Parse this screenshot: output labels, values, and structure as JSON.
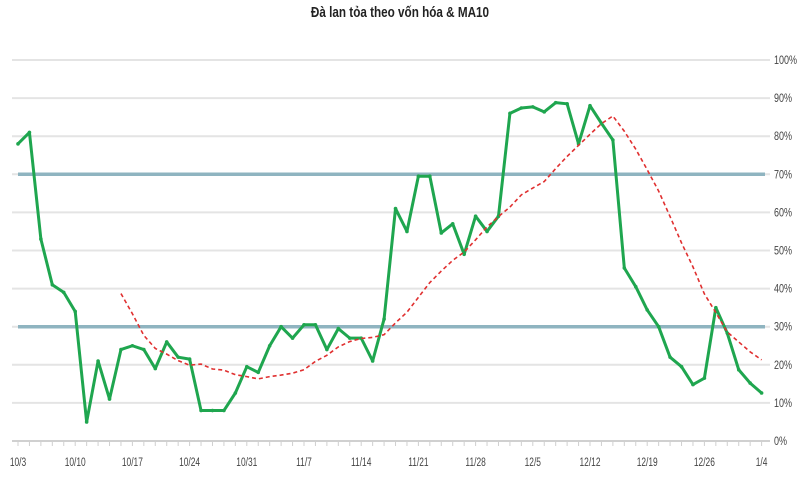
{
  "chart_data": {
    "type": "line",
    "title": "Đà lan tỏa theo vốn hóa & MA10",
    "xlabel": "",
    "ylabel": "",
    "ylim": [
      0,
      100
    ],
    "y_ticks": [
      "0%",
      "10%",
      "20%",
      "30%",
      "40%",
      "50%",
      "60%",
      "70%",
      "80%",
      "90%",
      "100%"
    ],
    "x_tick_labels": [
      "10/3",
      "10/10",
      "10/17",
      "10/24",
      "10/31",
      "11/7",
      "11/14",
      "11/21",
      "11/28",
      "12/5",
      "12/12",
      "12/19",
      "12/26",
      "1/4"
    ],
    "x_points_count": 66,
    "reference_lines": [
      70,
      30
    ],
    "grid": true,
    "colors": {
      "series": "#1fa64f",
      "ma10": "#e03030",
      "reference": "#8fb4c0",
      "grid": "#e4e4e4"
    },
    "series": [
      {
        "name": "Đà lan tỏa theo vốn hóa",
        "values": [
          78,
          81,
          53,
          41,
          39,
          34,
          5,
          21,
          11,
          24,
          25,
          24,
          19,
          26,
          22,
          21.5,
          8,
          8,
          8,
          12.6,
          19.5,
          18,
          25,
          30,
          27,
          30.5,
          30.5,
          24,
          29.5,
          27,
          27,
          21,
          32,
          61,
          55,
          69.5,
          69.5,
          54.6,
          57,
          49,
          59,
          55,
          59,
          86,
          87.4,
          87.7,
          86.4,
          88.8,
          88.5,
          78,
          88,
          83.4,
          79,
          45.4,
          40.5,
          34.4,
          30,
          22,
          19.5,
          14.8,
          16.5,
          35,
          28.3,
          18.7,
          15.2,
          12.6
        ]
      },
      {
        "name": "MA10",
        "values": [
          null,
          null,
          null,
          null,
          null,
          null,
          null,
          null,
          null,
          38.7,
          33.4,
          27.7,
          24.3,
          22.8,
          21.1,
          19.9,
          20.2,
          18.9,
          18.6,
          17.4,
          16.9,
          16.3,
          16.9,
          17.3,
          17.8,
          18.7,
          20.9,
          22.5,
          24.7,
          26.1,
          26.9,
          27.2,
          27.9,
          31.0,
          33.8,
          37.7,
          41.6,
          44.6,
          47.4,
          49.6,
          52.8,
          56.2,
          58.9,
          61.4,
          64.6,
          66.4,
          68.1,
          71.5,
          74.7,
          77.6,
          80.5,
          83.3,
          85.3,
          81.3,
          76.6,
          71.2,
          65.6,
          58.9,
          52.0,
          45.7,
          38.6,
          33.7,
          28.6,
          26.0,
          23.4,
          21.3
        ]
      }
    ]
  }
}
